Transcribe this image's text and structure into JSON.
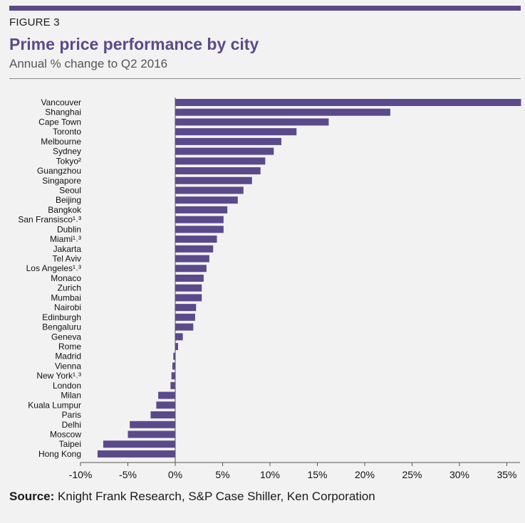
{
  "header": {
    "figure_label": "FIGURE 3",
    "title": "Prime price performance by city",
    "subtitle": "Annual % change to Q2 2016"
  },
  "source": {
    "label": "Source:",
    "text": " Knight Frank Research, S&P Case Shiller, Ken Corporation"
  },
  "colors": {
    "accent": "#5b4a8b",
    "bar": "#5b4a8b",
    "axis": "#555555"
  },
  "chart_data": {
    "type": "bar",
    "orientation": "horizontal",
    "title": "Prime price performance by city",
    "subtitle": "Annual % change to Q2 2016",
    "xlim": [
      -10,
      36
    ],
    "xticks": [
      -10,
      -5,
      0,
      5,
      10,
      15,
      20,
      25,
      30,
      35
    ],
    "xtick_labels": [
      "-10%",
      "-5%",
      "0%",
      "5%",
      "10%",
      "15%",
      "20%",
      "25%",
      "30%",
      "35%"
    ],
    "grid": false,
    "categories": [
      "Vancouver",
      "Shanghai",
      "Cape Town",
      "Toronto",
      "Melbourne",
      "Sydney",
      "Tokyo²",
      "Guangzhou",
      "Singapore",
      "Seoul",
      "Beijing",
      "Bangkok",
      "San Fransisco¹˒³",
      "Dublin",
      "Miami¹˒³",
      "Jakarta",
      "Tel Aviv",
      "Los Angeles¹˒³",
      "Monaco",
      "Zurich",
      "Mumbai",
      "Nairobi",
      "Edinburgh",
      "Bengaluru",
      "Geneva",
      "Rome",
      "Madrid",
      "Vienna",
      "New York¹˒³",
      "London",
      "Milan",
      "Kuala Lumpur",
      "Paris",
      "Delhi",
      "Moscow",
      "Taipei",
      "Hong Kong"
    ],
    "values": [
      36.5,
      22.7,
      16.2,
      12.8,
      11.2,
      10.4,
      9.5,
      9.0,
      8.1,
      7.2,
      6.6,
      5.5,
      5.1,
      5.1,
      4.4,
      4.0,
      3.6,
      3.3,
      3.0,
      2.8,
      2.8,
      2.2,
      2.1,
      1.9,
      0.8,
      0.3,
      -0.2,
      -0.3,
      -0.4,
      -0.5,
      -1.8,
      -2.0,
      -2.6,
      -4.8,
      -5.0,
      -7.6,
      -8.2
    ]
  }
}
